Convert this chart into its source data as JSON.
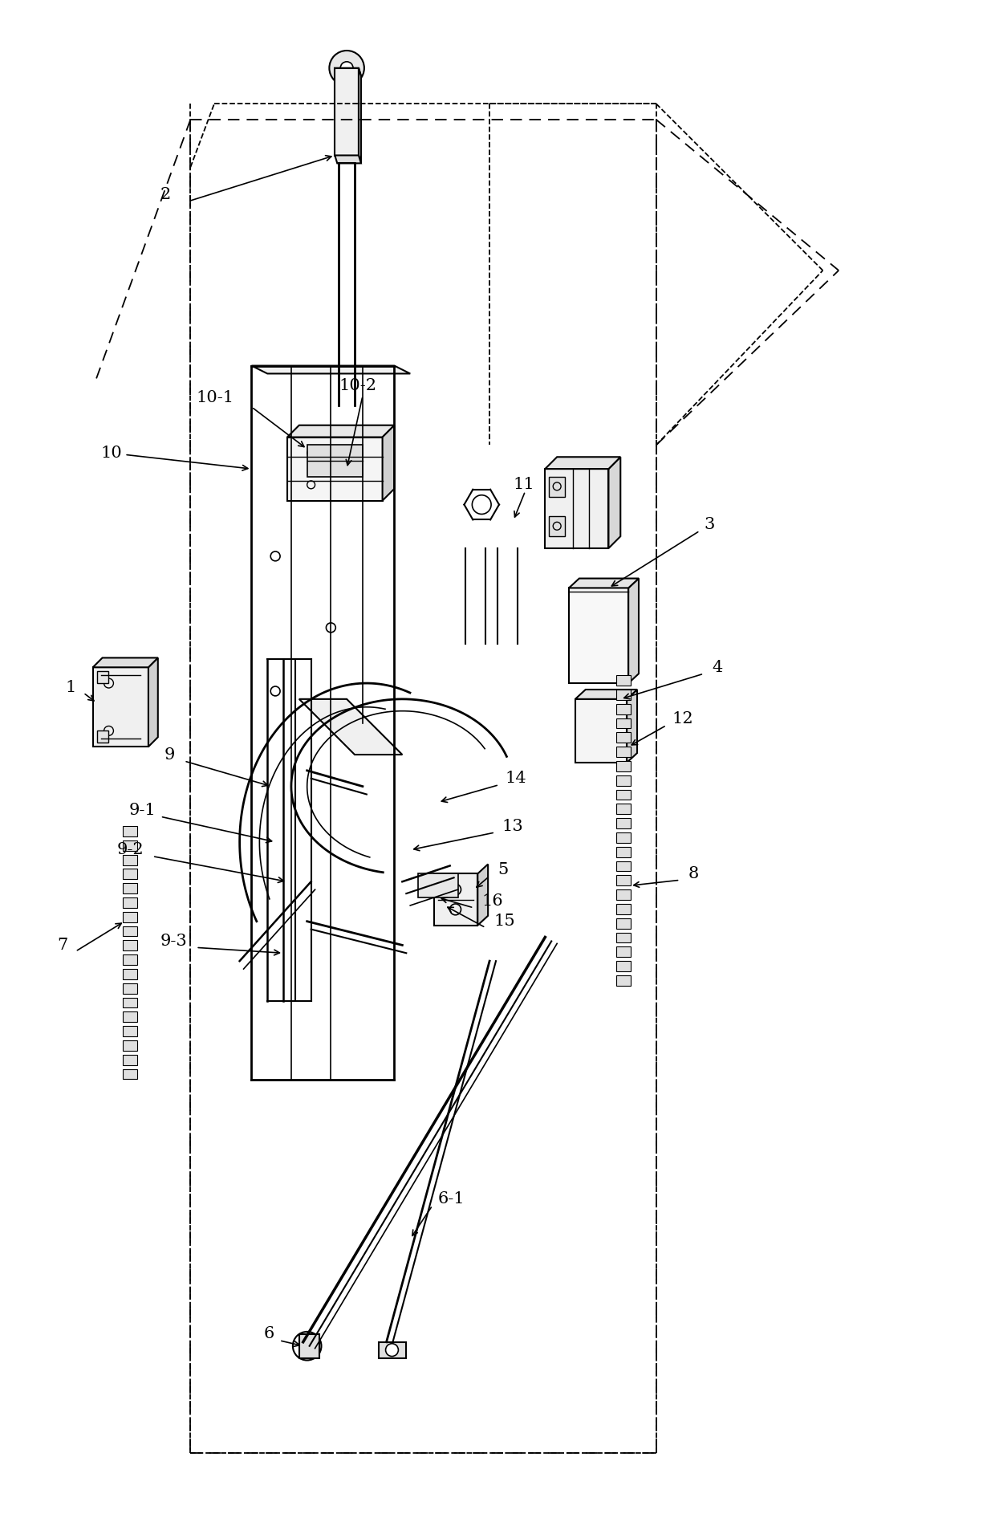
{
  "fig_width": 12.4,
  "fig_height": 18.91,
  "bg_color": "#ffffff",
  "lc": "#000000",
  "label_fontsize": 14,
  "annotation_fontsize": 13
}
